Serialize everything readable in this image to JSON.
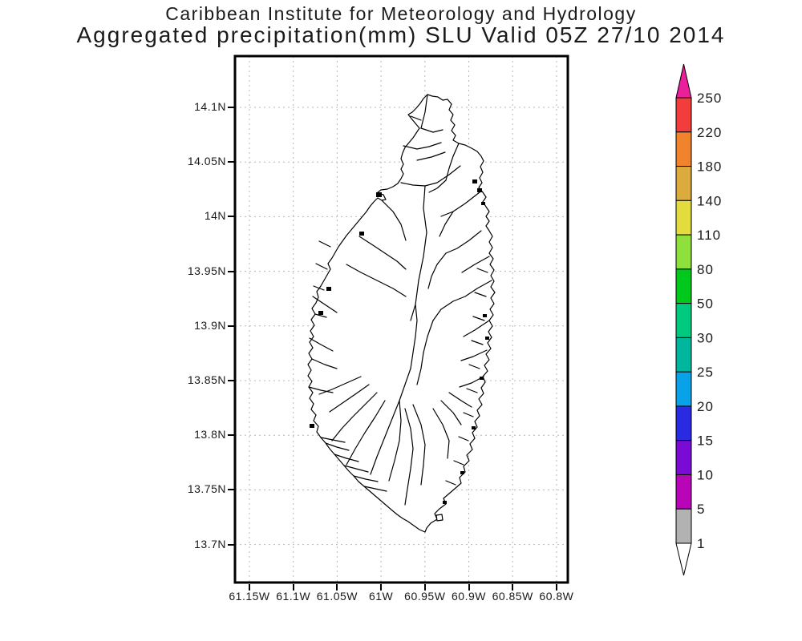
{
  "title": {
    "line1": "Caribbean Institute for Meteorology and Hydrology",
    "line2": "Aggregated precipitation(mm) SLU Valid 05Z 27/10 2014"
  },
  "y_axis": {
    "labels": [
      "14.1N",
      "14.05N",
      "14N",
      "13.95N",
      "13.9N",
      "13.85N",
      "13.8N",
      "13.75N",
      "13.7N"
    ]
  },
  "x_axis": {
    "labels": [
      "61.15W",
      "61.1W",
      "61.05W",
      "61W",
      "60.95W",
      "60.9W",
      "60.85W",
      "60.8W"
    ]
  },
  "colorbar": {
    "tick_labels": [
      "250",
      "220",
      "180",
      "140",
      "110",
      "80",
      "50",
      "30",
      "25",
      "20",
      "15",
      "10",
      "5",
      "1"
    ],
    "band_colors_top_to_bottom": [
      "#f23d3d",
      "#f0832c",
      "#dcab3e",
      "#e2dc3e",
      "#8fe03c",
      "#00c91c",
      "#00ca80",
      "#00b79e",
      "#09a2e8",
      "#2a2ae0",
      "#7a0bd4",
      "#b805b8",
      "#b2b2b2"
    ],
    "arrow_top_color": "#ea1f9a",
    "arrow_bottom_color": "#ffffff",
    "outline_color": "#000000"
  },
  "map_style": {
    "grid_color": "#b8b8b8",
    "frame_color": "#000000",
    "coastline_color": "#000000",
    "land_fill": "#ffffff"
  }
}
